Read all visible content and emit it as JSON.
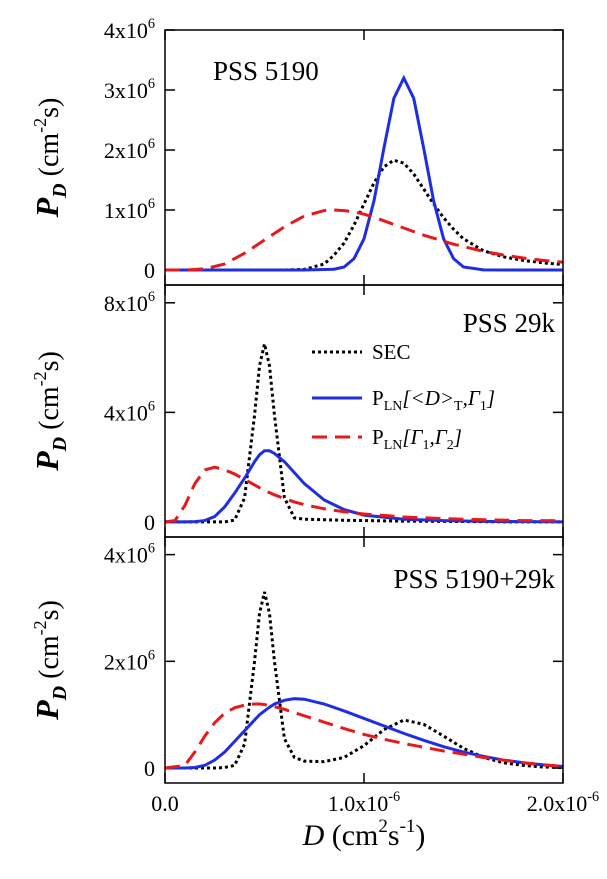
{
  "chart_data": [
    {
      "type": "line",
      "title": "PSS 5190",
      "ylabel": [
        "P",
        "D",
        " (cm",
        "-2",
        "s)"
      ],
      "xlim": [
        0,
        2e-06
      ],
      "ylim": [
        -250000,
        4000000
      ],
      "yticks": [
        0,
        {
          "value": 1000000.0,
          "label": "1x10",
          "sup": "6"
        },
        {
          "value": 2000000.0,
          "label": "2x10",
          "sup": "6"
        },
        {
          "value": 3000000.0,
          "label": "3x10",
          "sup": "6"
        },
        {
          "value": 4000000.0,
          "label": "4x10",
          "sup": "6"
        }
      ],
      "x": [
        0,
        1e-07,
        2e-07,
        3e-07,
        4e-07,
        5e-07,
        6e-07,
        7e-07,
        8e-07,
        8.5e-07,
        9e-07,
        9.5e-07,
        1e-06,
        1.05e-06,
        1.1e-06,
        1.15e-06,
        1.2e-06,
        1.25e-06,
        1.3e-06,
        1.35e-06,
        1.4e-06,
        1.45e-06,
        1.5e-06,
        1.6e-06,
        1.7e-06,
        1.8e-06,
        1.9e-06,
        2e-06
      ],
      "series": [
        {
          "color": "#000000",
          "linestyle": "dotted",
          "values": [
            0,
            0,
            0,
            0,
            0,
            0,
            0,
            10000.0,
            100000.0,
            250000.0,
            450000.0,
            750000.0,
            1100000.0,
            1450000.0,
            1720000.0,
            1830000.0,
            1780000.0,
            1600000.0,
            1350000.0,
            1100000.0,
            870000.0,
            680000.0,
            520000.0,
            320000.0,
            220000.0,
            160000.0,
            120000.0,
            90000.0
          ]
        },
        {
          "color": "#1f2ee0",
          "linestyle": "solid",
          "values": [
            0,
            0,
            0,
            0,
            0,
            0,
            0,
            0,
            8000.0,
            13000.0,
            50000.0,
            190000.0,
            520000.0,
            1150000.0,
            2030000.0,
            2860000.0,
            3200000.0,
            2860000.0,
            2030000.0,
            1150000.0,
            520000.0,
            190000.0,
            50000.0,
            3000.0,
            0,
            0,
            0,
            0
          ]
        },
        {
          "color": "#e8191b",
          "linestyle": "dashed",
          "values": [
            0,
            0,
            20000.0,
            100000.0,
            280000.0,
            500000.0,
            720000.0,
            900000.0,
            990000.0,
            1000000.0,
            990000.0,
            970000.0,
            930000.0,
            880000.0,
            820000.0,
            760000.0,
            700000.0,
            640000.0,
            580000.0,
            530000.0,
            480000.0,
            430000.0,
            390000.0,
            310000.0,
            250000.0,
            200000.0,
            160000.0,
            130000.0
          ]
        }
      ]
    },
    {
      "type": "line",
      "title": "PSS 29k",
      "ylabel": [
        "P",
        "D",
        " (cm",
        "-2",
        "s)"
      ],
      "xlim": [
        0,
        2e-06
      ],
      "ylim": [
        -550000,
        8650000
      ],
      "yticks": [
        0,
        {
          "value": 4000000.0,
          "label": "4x10",
          "sup": "6"
        },
        {
          "value": 8000000.0,
          "label": "8x10",
          "sup": "6"
        }
      ],
      "legend": true,
      "x": [
        0,
        5e-08,
        1e-07,
        1.5e-07,
        2e-07,
        2.5e-07,
        3e-07,
        3.5e-07,
        4e-07,
        4.5e-07,
        4.75e-07,
        5e-07,
        5.25e-07,
        5.5e-07,
        6e-07,
        6.5e-07,
        7e-07,
        8e-07,
        9e-07,
        1e-06,
        1.2e-06,
        1.4e-06,
        1.6e-06,
        1.8e-06,
        2e-06
      ],
      "series": [
        {
          "name": [
            "SEC"
          ],
          "color": "#000000",
          "linestyle": "dotted",
          "values": [
            0,
            0,
            0,
            0,
            0,
            0,
            0,
            70000.0,
            880000.0,
            3900000.0,
            5700000.0,
            6500000.0,
            5700000.0,
            3900000.0,
            880000.0,
            150000.0,
            100000.0,
            80000.0,
            60000.0,
            50000.0,
            30000.0,
            20000.0,
            10000.0,
            0,
            0
          ]
        },
        {
          "name": [
            "P",
            "LN",
            "[<D>",
            "T",
            ",Γ",
            "1",
            "]"
          ],
          "color": "#1f2ee0",
          "linestyle": "solid",
          "values": [
            0,
            0,
            0,
            10000.0,
            50000.0,
            200000.0,
            550000.0,
            1050000.0,
            1600000.0,
            2200000.0,
            2450000.0,
            2600000.0,
            2600000.0,
            2500000.0,
            2200000.0,
            1800000.0,
            1400000.0,
            800000.0,
            450000.0,
            250000.0,
            100000.0,
            50000.0,
            20000.0,
            10000.0,
            0
          ]
        },
        {
          "name": [
            "P",
            "LN",
            "[Γ",
            "1",
            ",Γ",
            "2",
            "]"
          ],
          "color": "#e8191b",
          "linestyle": "dashed",
          "values": [
            0,
            50000.0,
            600000.0,
            1400000.0,
            1900000.0,
            2000000.0,
            1900000.0,
            1750000.0,
            1550000.0,
            1350000.0,
            1250000.0,
            1150000.0,
            1070000.0,
            990000.0,
            850000.0,
            730000.0,
            630000.0,
            480000.0,
            370000.0,
            290000.0,
            180000.0,
            120000.0,
            80000.0,
            50000.0,
            40000.0
          ]
        }
      ]
    },
    {
      "type": "line",
      "title": "PSS 5190+29k",
      "ylabel": [
        "P",
        "D",
        " (cm",
        "-2",
        "s)"
      ],
      "xlabel": [
        "D",
        " (cm",
        "2",
        "s",
        "-1",
        ")"
      ],
      "xlim": [
        0,
        2e-06
      ],
      "ylim": [
        -280000,
        4330000
      ],
      "xticks": [
        {
          "value": 0,
          "label": "0.0"
        },
        {
          "value": 1e-06,
          "label": "1.0x10",
          "sup": "-6"
        },
        {
          "value": 2e-06,
          "label": "2.0x10",
          "sup": "-6"
        }
      ],
      "yticks": [
        0,
        {
          "value": 2000000.0,
          "label": "2x10",
          "sup": "6"
        },
        {
          "value": 4000000.0,
          "label": "4x10",
          "sup": "6"
        }
      ],
      "x": [
        0,
        1e-07,
        1.5e-07,
        2e-07,
        2.5e-07,
        3e-07,
        3.5e-07,
        4e-07,
        4.5e-07,
        4.75e-07,
        5e-07,
        5.25e-07,
        5.5e-07,
        6e-07,
        6.5e-07,
        7e-07,
        8e-07,
        9e-07,
        1e-06,
        1.1e-06,
        1.2e-06,
        1.3e-06,
        1.4e-06,
        1.5e-06,
        1.6e-06,
        1.7e-06,
        1.8e-06,
        1.9e-06,
        2e-06
      ],
      "series": [
        {
          "color": "#000000",
          "linestyle": "dotted",
          "values": [
            0,
            0,
            0,
            0,
            0,
            10000.0,
            50000.0,
            450000.0,
            2000000.0,
            2900000.0,
            3300000.0,
            2900000.0,
            2000000.0,
            550000.0,
            200000.0,
            130000.0,
            120000.0,
            200000.0,
            420000.0,
            720000.0,
            900000.0,
            820000.0,
            600000.0,
            370000.0,
            200000.0,
            100000.0,
            50000.0,
            20000.0,
            10000.0
          ]
        },
        {
          "color": "#1f2ee0",
          "linestyle": "solid",
          "values": [
            0,
            0,
            10000.0,
            50000.0,
            150000.0,
            300000.0,
            500000.0,
            700000.0,
            900000.0,
            1000000.0,
            1070000.0,
            1140000.0,
            1200000.0,
            1270000.0,
            1300000.0,
            1290000.0,
            1200000.0,
            1070000.0,
            930000.0,
            790000.0,
            650000.0,
            520000.0,
            400000.0,
            300000.0,
            220000.0,
            150000.0,
            100000.0,
            60000.0,
            30000.0
          ]
        },
        {
          "color": "#e8191b",
          "linestyle": "dashed",
          "values": [
            0,
            50000.0,
            300000.0,
            600000.0,
            850000.0,
            1030000.0,
            1130000.0,
            1180000.0,
            1200000.0,
            1200000.0,
            1190000.0,
            1170000.0,
            1150000.0,
            1100000.0,
            1040000.0,
            980000.0,
            860000.0,
            740000.0,
            630000.0,
            540000.0,
            460000.0,
            390000.0,
            320000.0,
            260000.0,
            200000.0,
            150000.0,
            100000.0,
            60000.0,
            30000.0
          ]
        }
      ]
    }
  ]
}
